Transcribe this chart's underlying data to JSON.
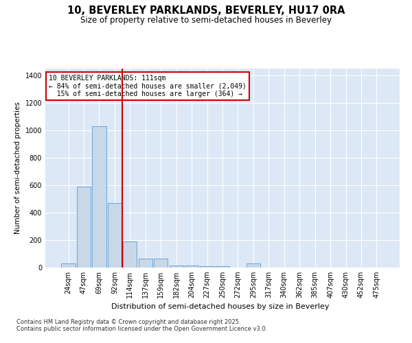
{
  "title": "10, BEVERLEY PARKLANDS, BEVERLEY, HU17 0RA",
  "subtitle": "Size of property relative to semi-detached houses in Beverley",
  "xlabel": "Distribution of semi-detached houses by size in Beverley",
  "ylabel": "Number of semi-detached properties",
  "bar_color": "#c8d8e8",
  "bar_edge_color": "#5b9bd5",
  "background_color": "#dce8f5",
  "property_label": "10 BEVERLEY PARKLANDS: 111sqm",
  "pct_smaller": 84,
  "count_smaller": 2049,
  "pct_larger": 15,
  "count_larger": 364,
  "vline_color": "#cc0000",
  "annotation_box_color": "#cc0000",
  "categories": [
    "24sqm",
    "47sqm",
    "69sqm",
    "92sqm",
    "114sqm",
    "137sqm",
    "159sqm",
    "182sqm",
    "204sqm",
    "227sqm",
    "250sqm",
    "272sqm",
    "295sqm",
    "317sqm",
    "340sqm",
    "362sqm",
    "385sqm",
    "407sqm",
    "430sqm",
    "452sqm",
    "475sqm"
  ],
  "values": [
    28,
    590,
    1030,
    470,
    190,
    65,
    65,
    13,
    13,
    8,
    12,
    0,
    28,
    0,
    0,
    0,
    0,
    0,
    0,
    0,
    0
  ],
  "ylim": [
    0,
    1450
  ],
  "yticks": [
    0,
    200,
    400,
    600,
    800,
    1000,
    1200,
    1400
  ],
  "vline_x_index": 4,
  "footnote1": "Contains HM Land Registry data © Crown copyright and database right 2025.",
  "footnote2": "Contains public sector information licensed under the Open Government Licence v3.0."
}
